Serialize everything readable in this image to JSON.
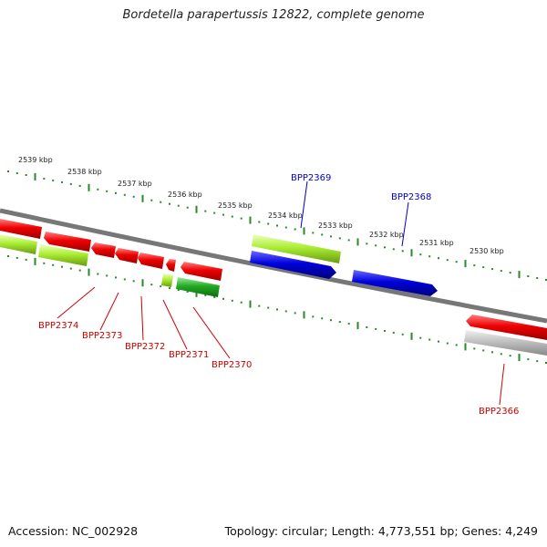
{
  "title": "Bordetella parapertussis 12822, complete genome",
  "footer": {
    "accession": "Accession: NC_002928",
    "summary": "Topology: circular; Length: 4,773,551 bp; Genes: 4,249"
  },
  "colors": {
    "backbone": "#777777",
    "scale_dots": "#2a8a2a",
    "red_gene": "#ee0000",
    "blue_gene": "#0000dd",
    "lime_gene": "#aaee33",
    "green_gene": "#22aa22",
    "grey_gene": "#bbbbbb",
    "label_red": "#cc0000",
    "label_blue": "#0000cc"
  },
  "scale_labels": [
    "2539 kbp",
    "2538 kbp",
    "2537 kbp",
    "2536 kbp",
    "2535 kbp",
    "2534 kbp",
    "2533 kbp",
    "2532 kbp",
    "2531 kbp",
    "2530 kbp"
  ],
  "gene_labels_top": [
    "BPP2369",
    "BPP2368"
  ],
  "gene_labels_bottom": [
    "BPP2374",
    "BPP2373",
    "BPP2372",
    "BPP2371",
    "BPP2370",
    "BPP2366"
  ]
}
